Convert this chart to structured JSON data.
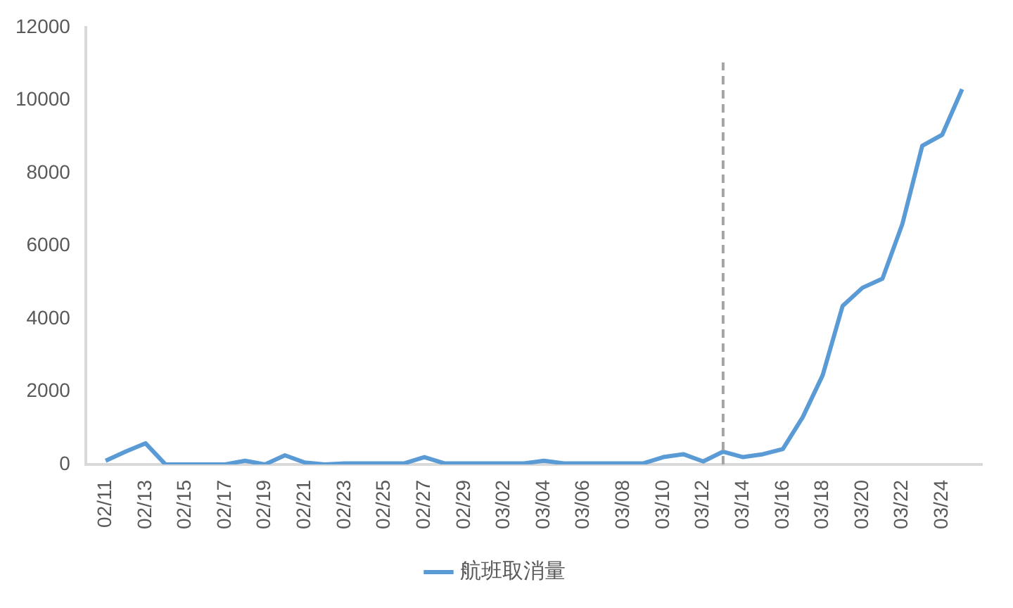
{
  "chart_data": {
    "type": "line",
    "x": [
      "--02-11",
      "--02-12",
      "--02-13",
      "--02-14",
      "--02-15",
      "--02-16",
      "--02-17",
      "--02-18",
      "--02-19",
      "--02-20",
      "--02-21",
      "--02-22",
      "--02-23",
      "--02-24",
      "--02-25",
      "--02-26",
      "--02-27",
      "--02-28",
      "--02-29",
      "--03-01",
      "--03-02",
      "--03-03",
      "--03-04",
      "--03-05",
      "--03-06",
      "--03-07",
      "--03-08",
      "--03-09",
      "--03-10",
      "--03-11",
      "--03-12",
      "--03-13",
      "--03-14",
      "--03-15",
      "--03-16",
      "--03-17",
      "--03-18",
      "--03-19",
      "--03-20",
      "--03-21",
      "--03-22",
      "--03-23",
      "--03-24",
      "--03-25"
    ],
    "series": [
      {
        "name": "航班取消量",
        "color": "#5b9bd5",
        "values": [
          100,
          350,
          580,
          0,
          0,
          0,
          0,
          100,
          0,
          250,
          50,
          0,
          30,
          30,
          30,
          30,
          200,
          30,
          30,
          30,
          30,
          30,
          100,
          30,
          30,
          30,
          30,
          30,
          200,
          280,
          80,
          350,
          200,
          280,
          420,
          1300,
          2450,
          4350,
          4850,
          5100,
          6600,
          8750,
          9050,
          10300
        ]
      }
    ],
    "xlim": [
      "--02-10",
      "--03-26"
    ],
    "xticks": [
      {
        "value": "--02-11",
        "label": "02/11"
      },
      {
        "value": "--02-13",
        "label": "02/13"
      },
      {
        "value": "--02-15",
        "label": "02/15"
      },
      {
        "value": "--02-17",
        "label": "02/17"
      },
      {
        "value": "--02-19",
        "label": "02/19"
      },
      {
        "value": "--02-21",
        "label": "02/21"
      },
      {
        "value": "--02-23",
        "label": "02/23"
      },
      {
        "value": "--02-25",
        "label": "02/25"
      },
      {
        "value": "--02-27",
        "label": "02/27"
      },
      {
        "value": "--02-29",
        "label": "02/29"
      },
      {
        "value": "--03-02",
        "label": "03/02"
      },
      {
        "value": "--03-04",
        "label": "03/04"
      },
      {
        "value": "--03-06",
        "label": "03/06"
      },
      {
        "value": "--03-08",
        "label": "03/08"
      },
      {
        "value": "--03-10",
        "label": "03/10"
      },
      {
        "value": "--03-12",
        "label": "03/12"
      },
      {
        "value": "--03-14",
        "label": "03/14"
      },
      {
        "value": "--03-16",
        "label": "03/16"
      },
      {
        "value": "--03-18",
        "label": "03/18"
      },
      {
        "value": "--03-20",
        "label": "03/20"
      },
      {
        "value": "--03-22",
        "label": "03/22"
      },
      {
        "value": "--03-24",
        "label": "03/24"
      }
    ],
    "ylim": [
      0,
      12000
    ],
    "yticks": [
      0,
      2000,
      4000,
      6000,
      8000,
      10000,
      12000
    ],
    "ref_lines": [
      {
        "axis": "x",
        "value": "--03-13",
        "color": "#a5a5a5",
        "line_style": "dashed"
      }
    ],
    "grid": false,
    "legend": "bottom",
    "marker": "none",
    "line_style": "solid"
  }
}
